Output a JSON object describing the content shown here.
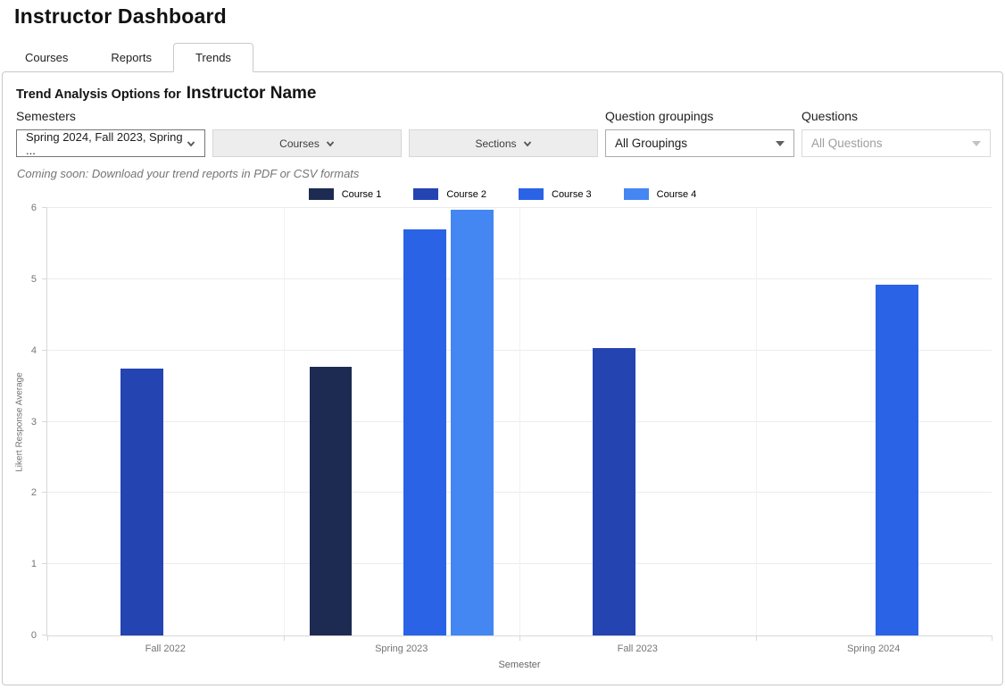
{
  "page": {
    "title": "Instructor Dashboard"
  },
  "tabs": [
    {
      "label": "Courses",
      "active": false
    },
    {
      "label": "Reports",
      "active": false
    },
    {
      "label": "Trends",
      "active": true
    }
  ],
  "panel": {
    "heading_prefix": "Trend Analysis Options for",
    "heading_name": "Instructor Name",
    "semesters": {
      "label": "Semesters",
      "value": "Spring 2024, Fall 2023, Spring ..."
    },
    "courses_button_label": "Courses",
    "sections_button_label": "Sections",
    "question_groupings": {
      "label": "Question groupings",
      "value": "All Groupings"
    },
    "questions": {
      "label": "Questions",
      "value": "All Questions",
      "disabled": true
    },
    "coming_soon_note": "Coming soon: Download your trend reports in PDF or CSV formats"
  },
  "chart_data": {
    "type": "bar",
    "title": "",
    "xlabel": "Semester",
    "ylabel": "Likert Response Average",
    "categories": [
      "Fall 2022",
      "Spring 2023",
      "Fall 2023",
      "Spring 2024"
    ],
    "series": [
      {
        "name": "Course 1",
        "color": "#1d2b52",
        "values": [
          null,
          3.77,
          null,
          null
        ]
      },
      {
        "name": "Course 2",
        "color": "#2444b2",
        "values": [
          3.74,
          null,
          4.03,
          null
        ]
      },
      {
        "name": "Course 3",
        "color": "#2a63e6",
        "values": [
          null,
          5.7,
          null,
          4.92
        ]
      },
      {
        "name": "Course 4",
        "color": "#4486f2",
        "values": [
          null,
          5.98,
          null,
          null
        ]
      }
    ],
    "ylim": [
      0,
      6
    ],
    "yticks": [
      0,
      1,
      2,
      3,
      4,
      5,
      6
    ],
    "grid": true,
    "legend_position": "top"
  }
}
